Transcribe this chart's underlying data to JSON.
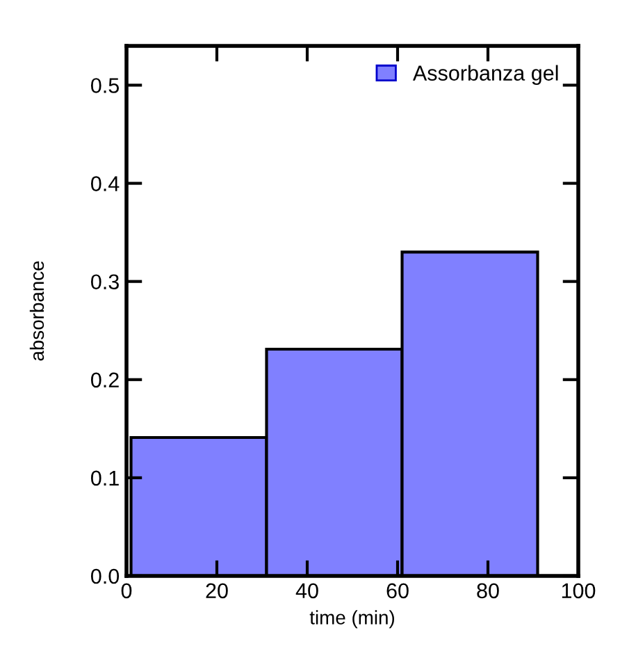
{
  "chart_data": {
    "type": "histogram",
    "xlabel": "time (min)",
    "ylabel": "absorbance",
    "bins": [
      1,
      31,
      61,
      91
    ],
    "series": [
      {
        "name": "Assorbanza gel",
        "color": "#8080ff",
        "values": [
          0.141,
          0.231,
          0.33
        ]
      }
    ],
    "xlim": [
      0,
      100
    ],
    "xticks": [
      0,
      20,
      40,
      60,
      80,
      100
    ],
    "ylim": [
      0,
      0.54
    ],
    "yticks": [
      {
        "value": 0,
        "label": "0.0"
      },
      0.1,
      0.2,
      0.3,
      0.4,
      0.5
    ],
    "grid": false,
    "legend": "top right"
  }
}
